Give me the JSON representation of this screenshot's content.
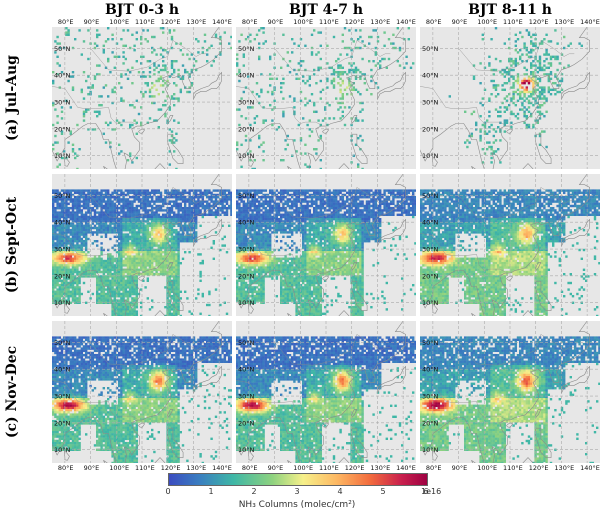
{
  "columns": [
    "BJT 0-3 h",
    "BJT 4-7 h",
    "BJT 8-11 h"
  ],
  "rows": [
    "(a) Jul-Aug",
    "(b) Sept-Oct",
    "(c) Nov-Dec"
  ],
  "x_ticks": [
    "80°E",
    "90°E",
    "100°E",
    "110°E",
    "120°E",
    "130°E",
    "140°E"
  ],
  "y_ticks": [
    "50°N",
    "40°N",
    "30°N",
    "20°N",
    "10°N"
  ],
  "colorbar": {
    "ticks": [
      "0",
      "1",
      "2",
      "3",
      "4",
      "5",
      "6"
    ],
    "exponent": "1e16",
    "label": "NH₃ Columns (molec/cm²)",
    "colors": [
      "#3b4cc0",
      "#3a7fc0",
      "#3fb7a6",
      "#8ed27f",
      "#f6f08a",
      "#fdb863",
      "#f26b3d",
      "#c9204d",
      "#9e0142"
    ]
  },
  "background_color": "#e7e7e7",
  "coastline_color": "#8a8a8a",
  "grid_color": "#a9a9a9"
}
